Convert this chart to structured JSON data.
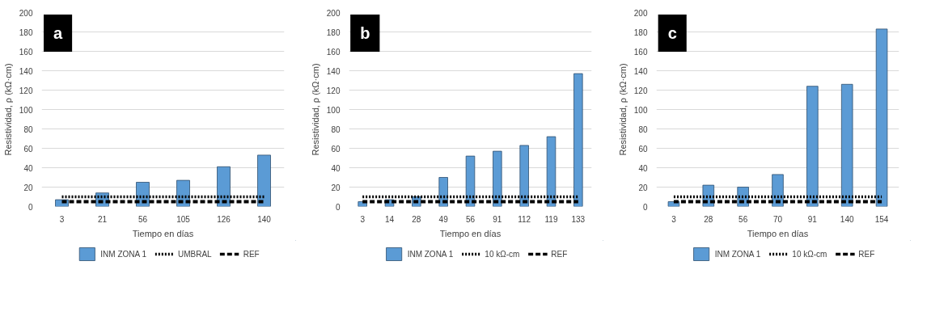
{
  "chart_data": [
    {
      "type": "bar",
      "title": "a",
      "xlabel": "Tiempo en días",
      "ylabel": "Resistividad, ρ (kΩ·cm)",
      "categories": [
        "3",
        "21",
        "56",
        "105",
        "126",
        "140"
      ],
      "ylim": [
        0,
        200
      ],
      "yticks": [
        0,
        20,
        40,
        60,
        80,
        100,
        120,
        140,
        160,
        180,
        200
      ],
      "grid": "y",
      "legend": "bottom",
      "series": [
        {
          "name": "INM ZONA 1",
          "color": "#5b9bd5",
          "values": [
            7,
            14,
            25,
            27,
            41,
            53
          ]
        },
        {
          "name": "UMBRAL",
          "type": "line",
          "line_style": "dotted",
          "color": "#000000",
          "values": [
            10,
            10,
            10,
            10,
            10,
            10
          ]
        },
        {
          "name": "REF",
          "type": "line",
          "line_style": "dashed",
          "color": "#000000",
          "values": [
            5,
            5,
            5,
            5,
            5,
            5
          ]
        }
      ]
    },
    {
      "type": "bar",
      "title": "b",
      "xlabel": "Tiempo en días",
      "ylabel": "Resistividad, ρ (kΩ·cm)",
      "categories": [
        "3",
        "14",
        "28",
        "49",
        "56",
        "91",
        "112",
        "119",
        "133"
      ],
      "ylim": [
        0,
        200
      ],
      "yticks": [
        0,
        20,
        40,
        60,
        80,
        100,
        120,
        140,
        160,
        180,
        200
      ],
      "grid": "y",
      "legend": "bottom",
      "series": [
        {
          "name": "INM ZONA 1",
          "color": "#5b9bd5",
          "values": [
            5,
            7,
            10,
            30,
            52,
            57,
            63,
            72,
            137
          ]
        },
        {
          "name": "10 kΩ-cm",
          "type": "line",
          "line_style": "dotted",
          "color": "#000000",
          "values": [
            10,
            10,
            10,
            10,
            10,
            10,
            10,
            10,
            10
          ]
        },
        {
          "name": "REF",
          "type": "line",
          "line_style": "dashed",
          "color": "#000000",
          "values": [
            5,
            5,
            5,
            5,
            5,
            5,
            5,
            5,
            5
          ]
        }
      ]
    },
    {
      "type": "bar",
      "title": "c",
      "xlabel": "Tiempo en días",
      "ylabel": "Resistividad, ρ (kΩ·cm)",
      "categories": [
        "3",
        "28",
        "56",
        "70",
        "91",
        "140",
        "154"
      ],
      "ylim": [
        0,
        200
      ],
      "yticks": [
        0,
        20,
        40,
        60,
        80,
        100,
        120,
        140,
        160,
        180,
        200
      ],
      "grid": "y",
      "legend": "bottom",
      "series": [
        {
          "name": "INM ZONA 1",
          "color": "#5b9bd5",
          "values": [
            5,
            22,
            20,
            33,
            124,
            126,
            183
          ]
        },
        {
          "name": "10 kΩ-cm",
          "type": "line",
          "line_style": "dotted",
          "color": "#000000",
          "values": [
            10,
            10,
            10,
            10,
            10,
            10,
            10
          ]
        },
        {
          "name": "REF",
          "type": "line",
          "line_style": "dashed",
          "color": "#000000",
          "values": [
            5,
            5,
            5,
            5,
            5,
            5,
            5
          ]
        }
      ]
    }
  ]
}
